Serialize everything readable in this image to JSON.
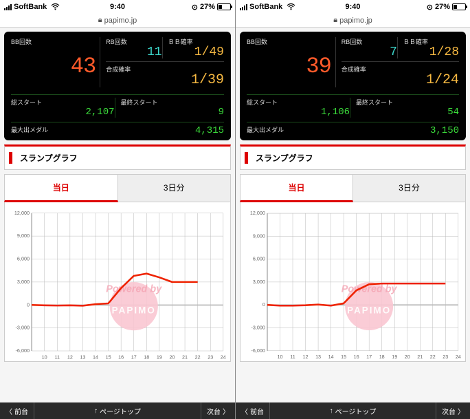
{
  "status": {
    "carrier": "SoftBank",
    "wifi": "􀙇",
    "time": "9:40",
    "alarm": "⏰",
    "battery_pct": "27%",
    "battery_fill": 27
  },
  "url": {
    "lock": "🔒",
    "host": "papimo.jp"
  },
  "nav": {
    "prev": "前台",
    "top": "ページトップ",
    "next": "次台"
  },
  "section_title": "スランプグラフ",
  "tabs": {
    "active": "当日",
    "other": "3日分"
  },
  "labels": {
    "bb": "BB回数",
    "rb": "RB回数",
    "bbprob": "ＢＢ確率",
    "synth": "合成確率",
    "total_start": "総スタート",
    "last_start": "最終スタート",
    "max_medal": "最大出メダル"
  },
  "chart": {
    "ylim": [
      -6000,
      12000
    ],
    "ytick_step": 3000,
    "xlim": [
      9,
      24
    ],
    "xtick_step": 1,
    "gridcolor": "#bbbbbb",
    "bgcolor": "#ffffff",
    "line_color": "#ee2200",
    "line_width": 2.5,
    "watermark_text": "Powered by",
    "watermark_color": "#f5a4b3",
    "logo_circle_color": "#f9c7d1"
  },
  "panes": [
    {
      "bb": "43",
      "rb": "11",
      "bbprob": "1/49",
      "synth": "1/39",
      "total_start": "2,107",
      "last_start": "9",
      "max_medal": "4,315",
      "series": [
        [
          9,
          0
        ],
        [
          10,
          -50
        ],
        [
          11,
          -80
        ],
        [
          12,
          -50
        ],
        [
          13,
          -100
        ],
        [
          14,
          100
        ],
        [
          15,
          200
        ],
        [
          16,
          2200
        ],
        [
          17,
          3800
        ],
        [
          18,
          4100
        ],
        [
          19,
          3600
        ],
        [
          20,
          3000
        ],
        [
          21,
          3000
        ],
        [
          22,
          3000
        ]
      ]
    },
    {
      "bb": "39",
      "rb": "7",
      "bbprob": "1/28",
      "synth": "1/24",
      "total_start": "1,106",
      "last_start": "54",
      "max_medal": "3,150",
      "series": [
        [
          9,
          0
        ],
        [
          10,
          -100
        ],
        [
          11,
          -100
        ],
        [
          12,
          -50
        ],
        [
          13,
          50
        ],
        [
          14,
          -100
        ],
        [
          15,
          200
        ],
        [
          16,
          1900
        ],
        [
          17,
          2700
        ],
        [
          18,
          2800
        ],
        [
          19,
          2800
        ],
        [
          20,
          2800
        ],
        [
          21,
          2800
        ],
        [
          22,
          2800
        ],
        [
          23,
          2800
        ]
      ]
    }
  ]
}
